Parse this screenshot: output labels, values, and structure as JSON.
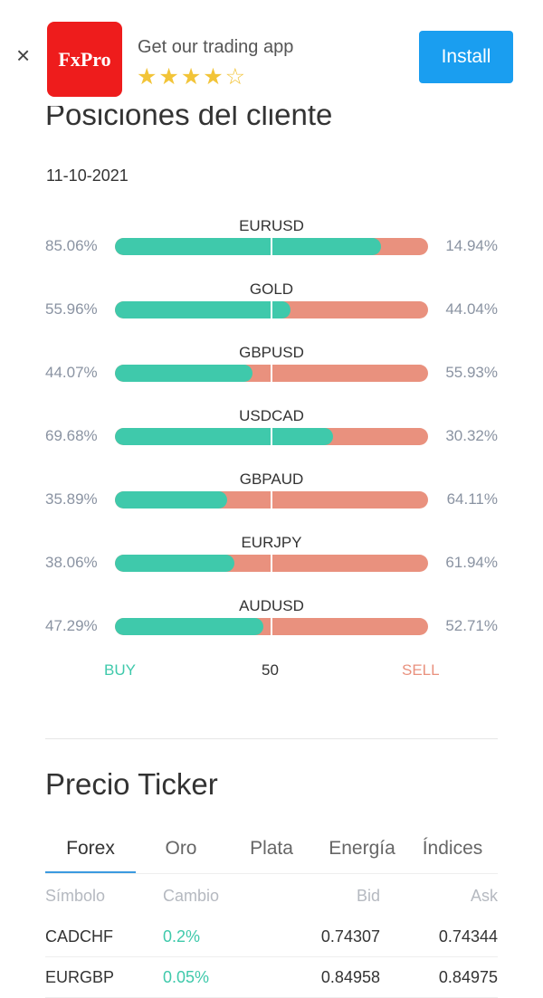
{
  "banner": {
    "close": "×",
    "logo": "FxPro",
    "text": "Get our trading app",
    "stars": "★★★★☆",
    "rating": 4.5,
    "install": "Install"
  },
  "positions": {
    "title": "Posiciones del cliente",
    "date": "11-10-2021",
    "rows": [
      {
        "pair": "EURUSD",
        "buy": "85.06%",
        "sell": "14.94%",
        "buy_value": 85.06
      },
      {
        "pair": "GOLD",
        "buy": "55.96%",
        "sell": "44.04%",
        "buy_value": 55.96
      },
      {
        "pair": "GBPUSD",
        "buy": "44.07%",
        "sell": "55.93%",
        "buy_value": 44.07
      },
      {
        "pair": "USDCAD",
        "buy": "69.68%",
        "sell": "30.32%",
        "buy_value": 69.68
      },
      {
        "pair": "GBPAUD",
        "buy": "35.89%",
        "sell": "64.11%",
        "buy_value": 35.89
      },
      {
        "pair": "EURJPY",
        "buy": "38.06%",
        "sell": "61.94%",
        "buy_value": 38.06
      },
      {
        "pair": "AUDUSD",
        "buy": "47.29%",
        "sell": "52.71%",
        "buy_value": 47.29
      }
    ],
    "legend": {
      "buy": "BUY",
      "mid": "50",
      "sell": "SELL"
    },
    "colors": {
      "buy": "#3fc9ab",
      "sell": "#e9917e"
    }
  },
  "ticker": {
    "title": "Precio Ticker",
    "tabs": [
      "Forex",
      "Oro",
      "Plata",
      "Energía",
      "Índices"
    ],
    "active_tab": 0,
    "headers": [
      "Símbolo",
      "Cambio",
      "Bid",
      "Ask"
    ],
    "rows": [
      [
        "CADCHF",
        "0.2%",
        "0.74307",
        "0.74344"
      ],
      [
        "EURGBP",
        "0.05%",
        "0.84958",
        "0.84975"
      ]
    ]
  }
}
